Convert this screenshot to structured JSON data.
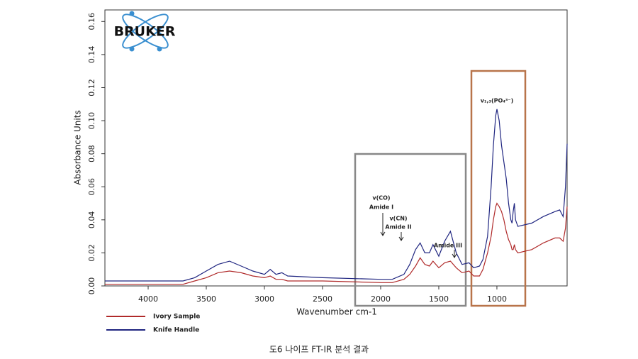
{
  "chart_data": {
    "type": "line",
    "logo": "BRUKER",
    "x_label": "Wavenumber cm-1",
    "y_label": "Absorbance Units",
    "caption": "도6 나이프 FT-IR 분석 결과",
    "annotations": [
      "v(CO)",
      "Amide I",
      "v(CN)",
      "Amide II",
      "Amide III",
      "v₁,₃(PO₄³⁻)"
    ],
    "x": [
      4372,
      4000,
      3700,
      3600,
      3500,
      3400,
      3300,
      3200,
      3100,
      3000,
      2950,
      2900,
      2850,
      2800,
      2500,
      2000,
      1900,
      1800,
      1750,
      1700,
      1660,
      1620,
      1580,
      1550,
      1500,
      1450,
      1400,
      1350,
      1300,
      1240,
      1200,
      1150,
      1120,
      1080,
      1050,
      1030,
      1010,
      1000,
      980,
      960,
      940,
      920,
      900,
      880,
      870,
      860,
      850,
      840,
      820,
      700,
      600,
      500,
      460,
      430,
      410,
      396
    ],
    "series": [
      {
        "name": "Ivory Sample",
        "color": "#b02a2a",
        "values": [
          0.001,
          0.001,
          0.001,
          0.003,
          0.005,
          0.008,
          0.009,
          0.008,
          0.006,
          0.005,
          0.006,
          0.004,
          0.004,
          0.003,
          0.003,
          0.002,
          0.002,
          0.004,
          0.007,
          0.012,
          0.017,
          0.013,
          0.012,
          0.015,
          0.011,
          0.014,
          0.015,
          0.011,
          0.008,
          0.009,
          0.006,
          0.006,
          0.01,
          0.02,
          0.03,
          0.04,
          0.048,
          0.05,
          0.048,
          0.045,
          0.04,
          0.033,
          0.028,
          0.025,
          0.022,
          0.022,
          0.025,
          0.022,
          0.02,
          0.022,
          0.026,
          0.029,
          0.029,
          0.027,
          0.035,
          0.048
        ]
      },
      {
        "name": "Knife Handle",
        "color": "#1f2580",
        "values": [
          0.003,
          0.003,
          0.003,
          0.005,
          0.009,
          0.013,
          0.015,
          0.012,
          0.009,
          0.007,
          0.01,
          0.007,
          0.008,
          0.006,
          0.005,
          0.004,
          0.004,
          0.007,
          0.013,
          0.022,
          0.026,
          0.02,
          0.02,
          0.025,
          0.018,
          0.027,
          0.033,
          0.02,
          0.013,
          0.014,
          0.011,
          0.012,
          0.016,
          0.03,
          0.06,
          0.085,
          0.103,
          0.107,
          0.1,
          0.085,
          0.075,
          0.065,
          0.05,
          0.04,
          0.038,
          0.045,
          0.05,
          0.04,
          0.036,
          0.038,
          0.042,
          0.045,
          0.046,
          0.042,
          0.06,
          0.086
        ]
      }
    ],
    "xlim": [
      4372,
      396
    ],
    "xticks": [
      4000,
      3500,
      3000,
      2500,
      2000,
      1500,
      1000
    ],
    "ylim": [
      0,
      0.167
    ],
    "yticks": [
      {
        "value": 0,
        "label": "0.00"
      },
      0.02,
      0.04,
      0.06,
      0.08,
      {
        "value": 0.1,
        "label": "0.10"
      },
      0.12,
      0.14,
      0.16
    ]
  }
}
